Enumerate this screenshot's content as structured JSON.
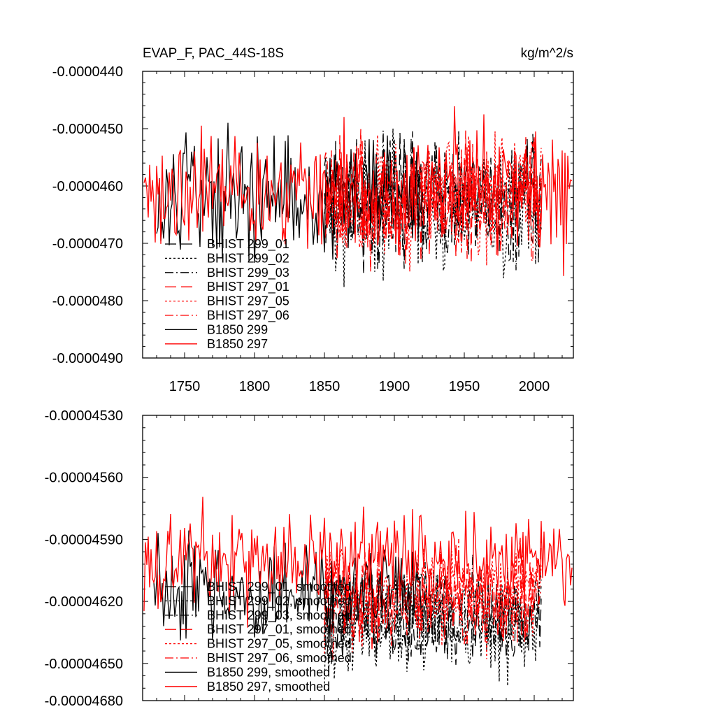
{
  "chart_data": [
    {
      "type": "line",
      "title": "EVAP_F, PAC_44S-18S",
      "units": "kg/m^2/s",
      "xlim": [
        1720,
        2028
      ],
      "ylim": [
        -4.9e-05,
        -4.4e-05
      ],
      "x_ticks": [
        1750,
        1800,
        1850,
        1900,
        1950,
        2000
      ],
      "x_tick_labels": [
        "1750",
        "1800",
        "1850",
        "1900",
        "1950",
        "2000"
      ],
      "y_ticks": [
        -4.4e-05,
        -4.5e-05,
        -4.6e-05,
        -4.7e-05,
        -4.8e-05,
        -4.9e-05
      ],
      "y_tick_labels": [
        "-0.0000440",
        "-0.0000450",
        "-0.0000460",
        "-0.0000470",
        "-0.0000480",
        "-0.0000490"
      ],
      "series": [
        {
          "name": "BHIST 299_01",
          "color": "#000000",
          "dash": "longdash",
          "x_start": 1850,
          "x_end": 2005,
          "mean": -4.63e-05,
          "amplitude": 6.5e-07
        },
        {
          "name": "BHIST 299_02",
          "color": "#000000",
          "dash": "dot",
          "x_start": 1850,
          "x_end": 2005,
          "mean": -4.635e-05,
          "amplitude": 6.5e-07
        },
        {
          "name": "BHIST 299_03",
          "color": "#000000",
          "dash": "dashdot",
          "x_start": 1850,
          "x_end": 2005,
          "mean": -4.625e-05,
          "amplitude": 6.5e-07
        },
        {
          "name": "BHIST 297_01",
          "color": "#ff0000",
          "dash": "longdash",
          "x_start": 1850,
          "x_end": 2005,
          "mean": -4.62e-05,
          "amplitude": 6.5e-07
        },
        {
          "name": "BHIST 297_05",
          "color": "#ff0000",
          "dash": "dot",
          "x_start": 1850,
          "x_end": 2005,
          "mean": -4.62e-05,
          "amplitude": 6.5e-07
        },
        {
          "name": "BHIST 297_06",
          "color": "#ff0000",
          "dash": "dashdot",
          "x_start": 1850,
          "x_end": 2005,
          "mean": -4.625e-05,
          "amplitude": 6.5e-07
        },
        {
          "name": "B1850 299",
          "color": "#000000",
          "dash": "solid",
          "x_start": 1730,
          "x_end": 1920,
          "mean": -4.62e-05,
          "amplitude": 6.5e-07
        },
        {
          "name": "B1850 297",
          "color": "#ff0000",
          "dash": "solid",
          "x_start": 1721,
          "x_end": 2027,
          "mean": -4.605e-05,
          "amplitude": 6.5e-07
        }
      ]
    },
    {
      "type": "line",
      "title": "",
      "xlim": [
        1720,
        2028
      ],
      "ylim": [
        -4.668e-05,
        -4.53e-05
      ],
      "x_ticks": [
        1750,
        1800,
        1850,
        1900,
        1950,
        2000
      ],
      "y_ticks": [
        -4.53e-05,
        -4.56e-05,
        -4.59e-05,
        -4.62e-05,
        -4.65e-05,
        -4.68e-05
      ],
      "y_tick_labels": [
        "-0.00004530",
        "-0.00004560",
        "-0.00004590",
        "-0.00004620",
        "-0.00004650",
        "-0.00004680"
      ],
      "series": [
        {
          "name": "BHIST 299_01, smoothed",
          "color": "#000000",
          "dash": "longdash",
          "x_start": 1850,
          "x_end": 2005,
          "mean": -4.628e-05,
          "amplitude": 1.4e-07
        },
        {
          "name": "BHIST 299_02, smoothed",
          "color": "#000000",
          "dash": "dot",
          "x_start": 1850,
          "x_end": 2005,
          "mean": -4.632e-05,
          "amplitude": 1.4e-07
        },
        {
          "name": "BHIST 299_03, smoothed",
          "color": "#000000",
          "dash": "dashdot",
          "x_start": 1850,
          "x_end": 2005,
          "mean": -4.625e-05,
          "amplitude": 1.4e-07
        },
        {
          "name": "BHIST 297_01, smoothed",
          "color": "#ff0000",
          "dash": "longdash",
          "x_start": 1850,
          "x_end": 2005,
          "mean": -4.615e-05,
          "amplitude": 1.4e-07
        },
        {
          "name": "BHIST 297_05, smoothed",
          "color": "#ff0000",
          "dash": "dot",
          "x_start": 1850,
          "x_end": 2005,
          "mean": -4.618e-05,
          "amplitude": 1.4e-07
        },
        {
          "name": "BHIST 297_06, smoothed",
          "color": "#ff0000",
          "dash": "dashdot",
          "x_start": 1850,
          "x_end": 2005,
          "mean": -4.62e-05,
          "amplitude": 1.4e-07
        },
        {
          "name": "B1850 299, smoothed",
          "color": "#000000",
          "dash": "solid",
          "x_start": 1728,
          "x_end": 1920,
          "mean": -4.615e-05,
          "amplitude": 1.4e-07
        },
        {
          "name": "B1850 297, smoothed",
          "color": "#ff0000",
          "dash": "solid",
          "x_start": 1721,
          "x_end": 2027,
          "mean": -4.6e-05,
          "amplitude": 1.4e-07
        }
      ]
    }
  ]
}
